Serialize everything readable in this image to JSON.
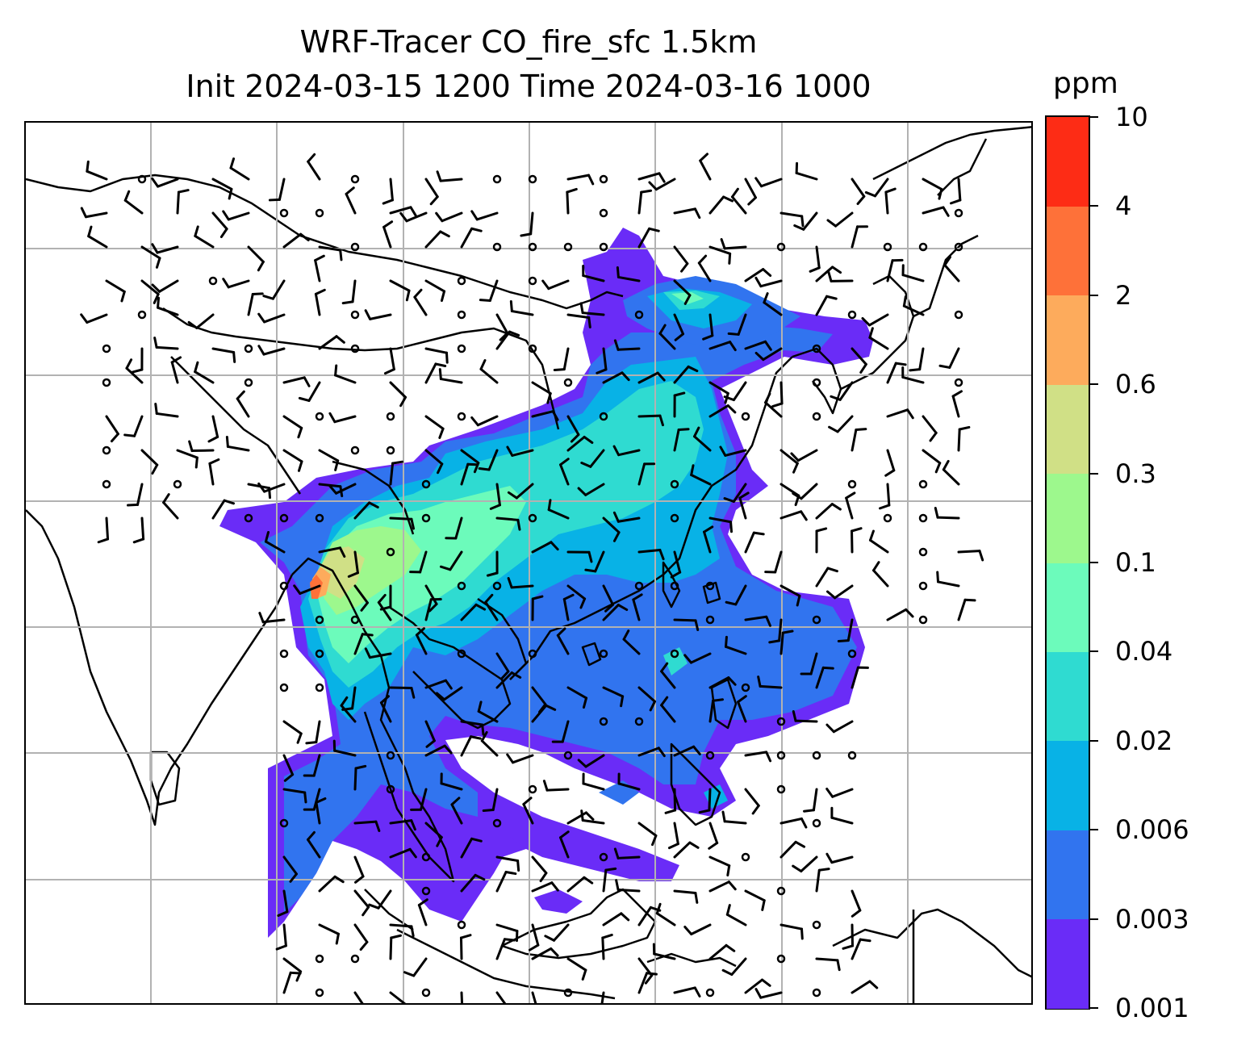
{
  "title": {
    "line1": "WRF-Tracer CO_fire_sfc 1.5km",
    "line2": "Init 2024-03-15 1200 Time 2024-03-16 1000"
  },
  "colorbar": {
    "unit": "ppm",
    "levels": [
      "0.001",
      "0.003",
      "0.006",
      "0.02",
      "0.04",
      "0.1",
      "0.3",
      "0.6",
      "2",
      "4",
      "10"
    ],
    "colors": [
      "#6a2cf7",
      "#3174ef",
      "#08b2e6",
      "#2fdbd1",
      "#6cfbbb",
      "#9df88d",
      "#d0e086",
      "#fdab5c",
      "#fe7139",
      "#fd2c15"
    ]
  },
  "map": {
    "grid": true,
    "field": "CO_fire_sfc",
    "overlay": "wind barbs",
    "colors": {
      "coastline": "#000000",
      "gridline": "#b2b2b2"
    }
  }
}
